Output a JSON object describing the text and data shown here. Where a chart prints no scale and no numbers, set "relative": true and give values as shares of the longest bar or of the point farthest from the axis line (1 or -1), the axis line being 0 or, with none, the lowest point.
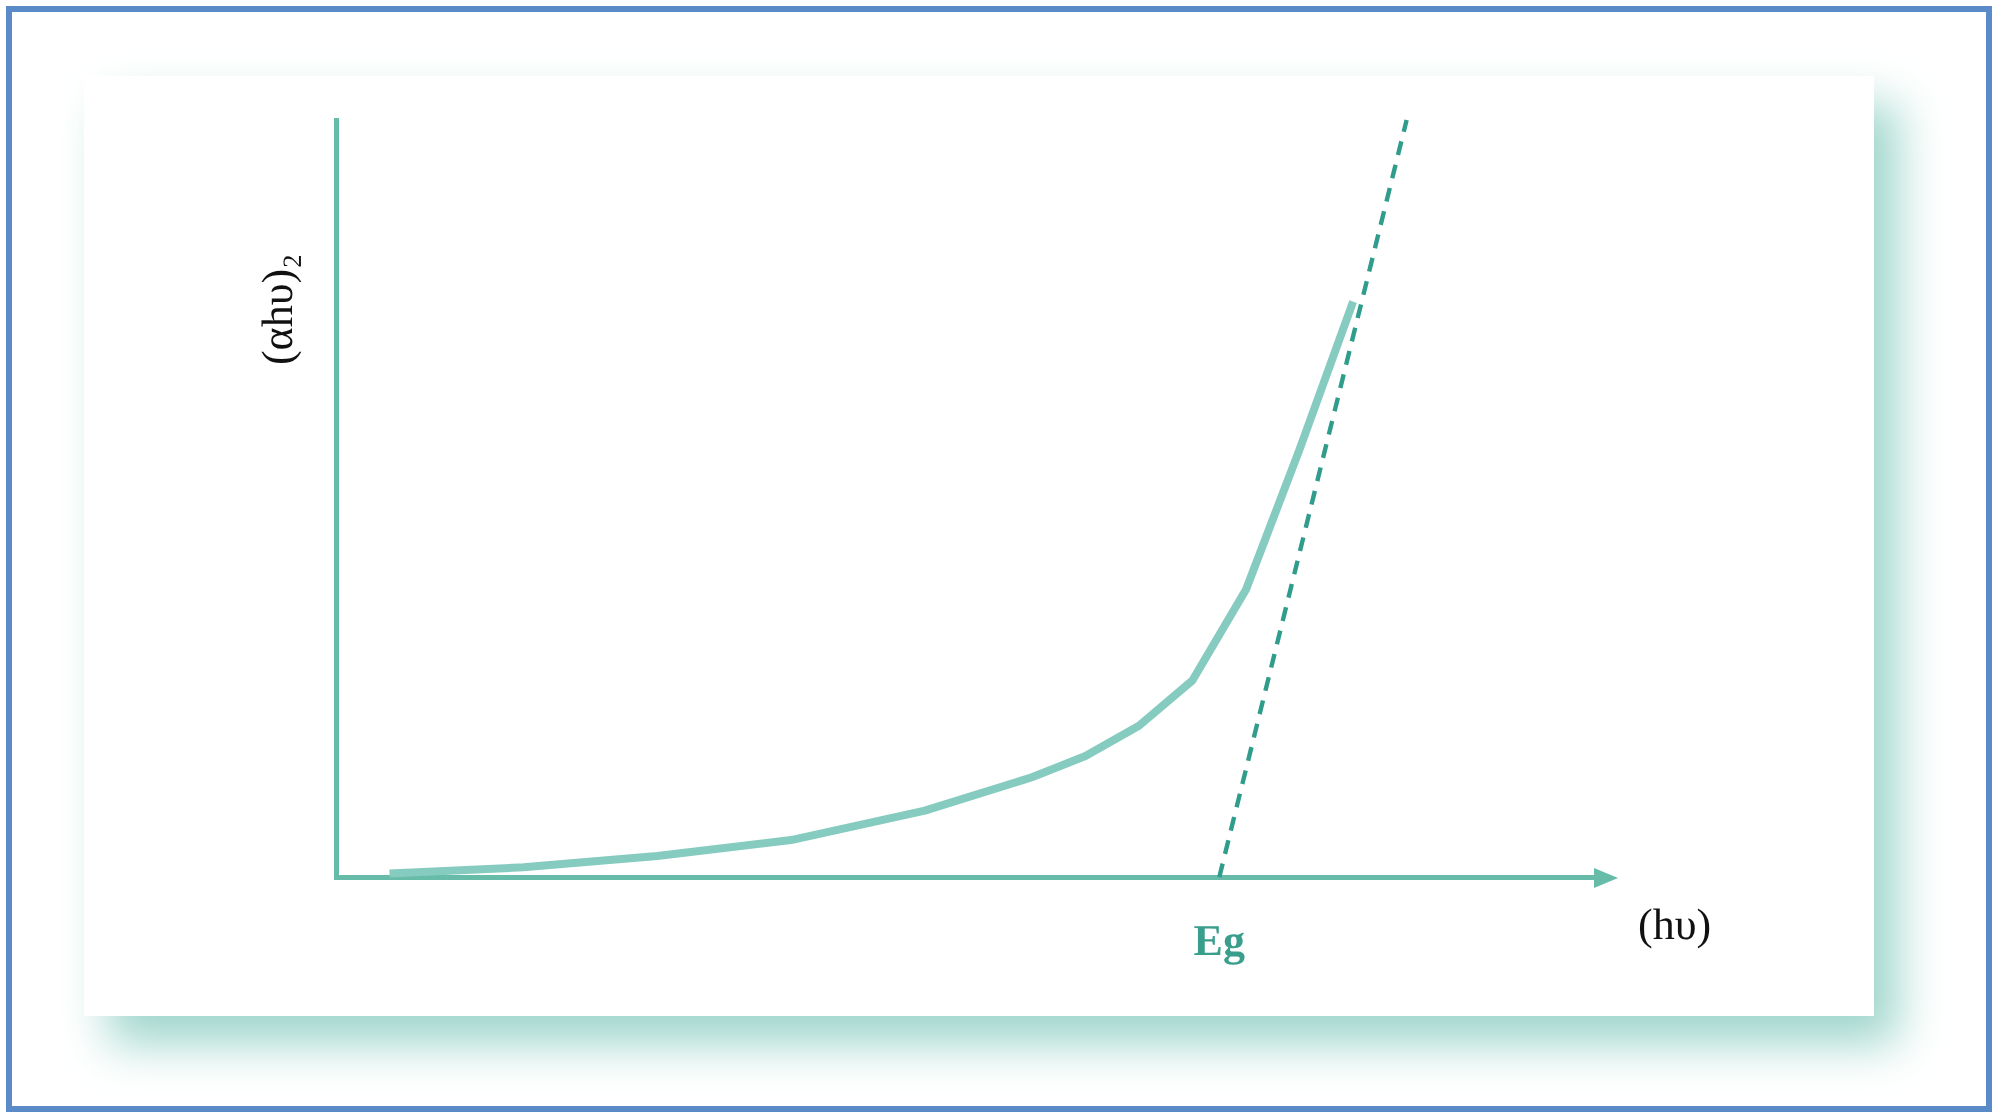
{
  "chart_data": {
    "type": "line",
    "relative": true,
    "xlabel": "(hυ)",
    "ylabel": "(αhυ)₂",
    "grid": false,
    "legend": false,
    "marker": "none",
    "annotations": [
      "Eg"
    ],
    "categories": [
      null,
      null,
      null,
      null,
      null,
      null,
      null,
      null,
      null,
      null,
      null,
      null,
      null,
      null,
      null,
      null,
      null,
      null,
      null,
      null,
      null,
      null,
      null,
      null,
      null,
      null,
      null,
      null,
      null,
      null,
      null,
      null,
      null,
      null,
      null,
      null,
      null,
      null,
      null,
      null,
      null,
      null,
      null,
      null,
      null,
      null,
      null,
      null
    ],
    "series": [
      {
        "color": "#86cbbf",
        "line_style": "solid",
        "values": [
          null,
          null,
          0.005,
          null,
          null,
          null,
          null,
          0.013,
          null,
          null,
          null,
          null,
          0.028,
          null,
          null,
          null,
          null,
          0.049,
          null,
          null,
          null,
          null,
          0.088,
          null,
          null,
          null,
          0.132,
          null,
          0.16,
          null,
          0.2,
          null,
          0.26,
          null,
          0.38,
          null,
          0.565,
          null,
          0.76,
          null,
          null,
          null,
          null,
          null,
          null,
          null,
          null,
          null
        ]
      },
      {
        "color": "#2f9c8c",
        "line_style": "dashed",
        "values": [
          null,
          null,
          null,
          null,
          null,
          null,
          null,
          null,
          null,
          null,
          null,
          null,
          null,
          null,
          null,
          null,
          null,
          null,
          null,
          null,
          null,
          null,
          null,
          null,
          null,
          null,
          null,
          null,
          null,
          null,
          null,
          null,
          null,
          0,
          null,
          null,
          null,
          null,
          null,
          null,
          1,
          null,
          null,
          null,
          null,
          null,
          null,
          null
        ]
      }
    ]
  }
}
